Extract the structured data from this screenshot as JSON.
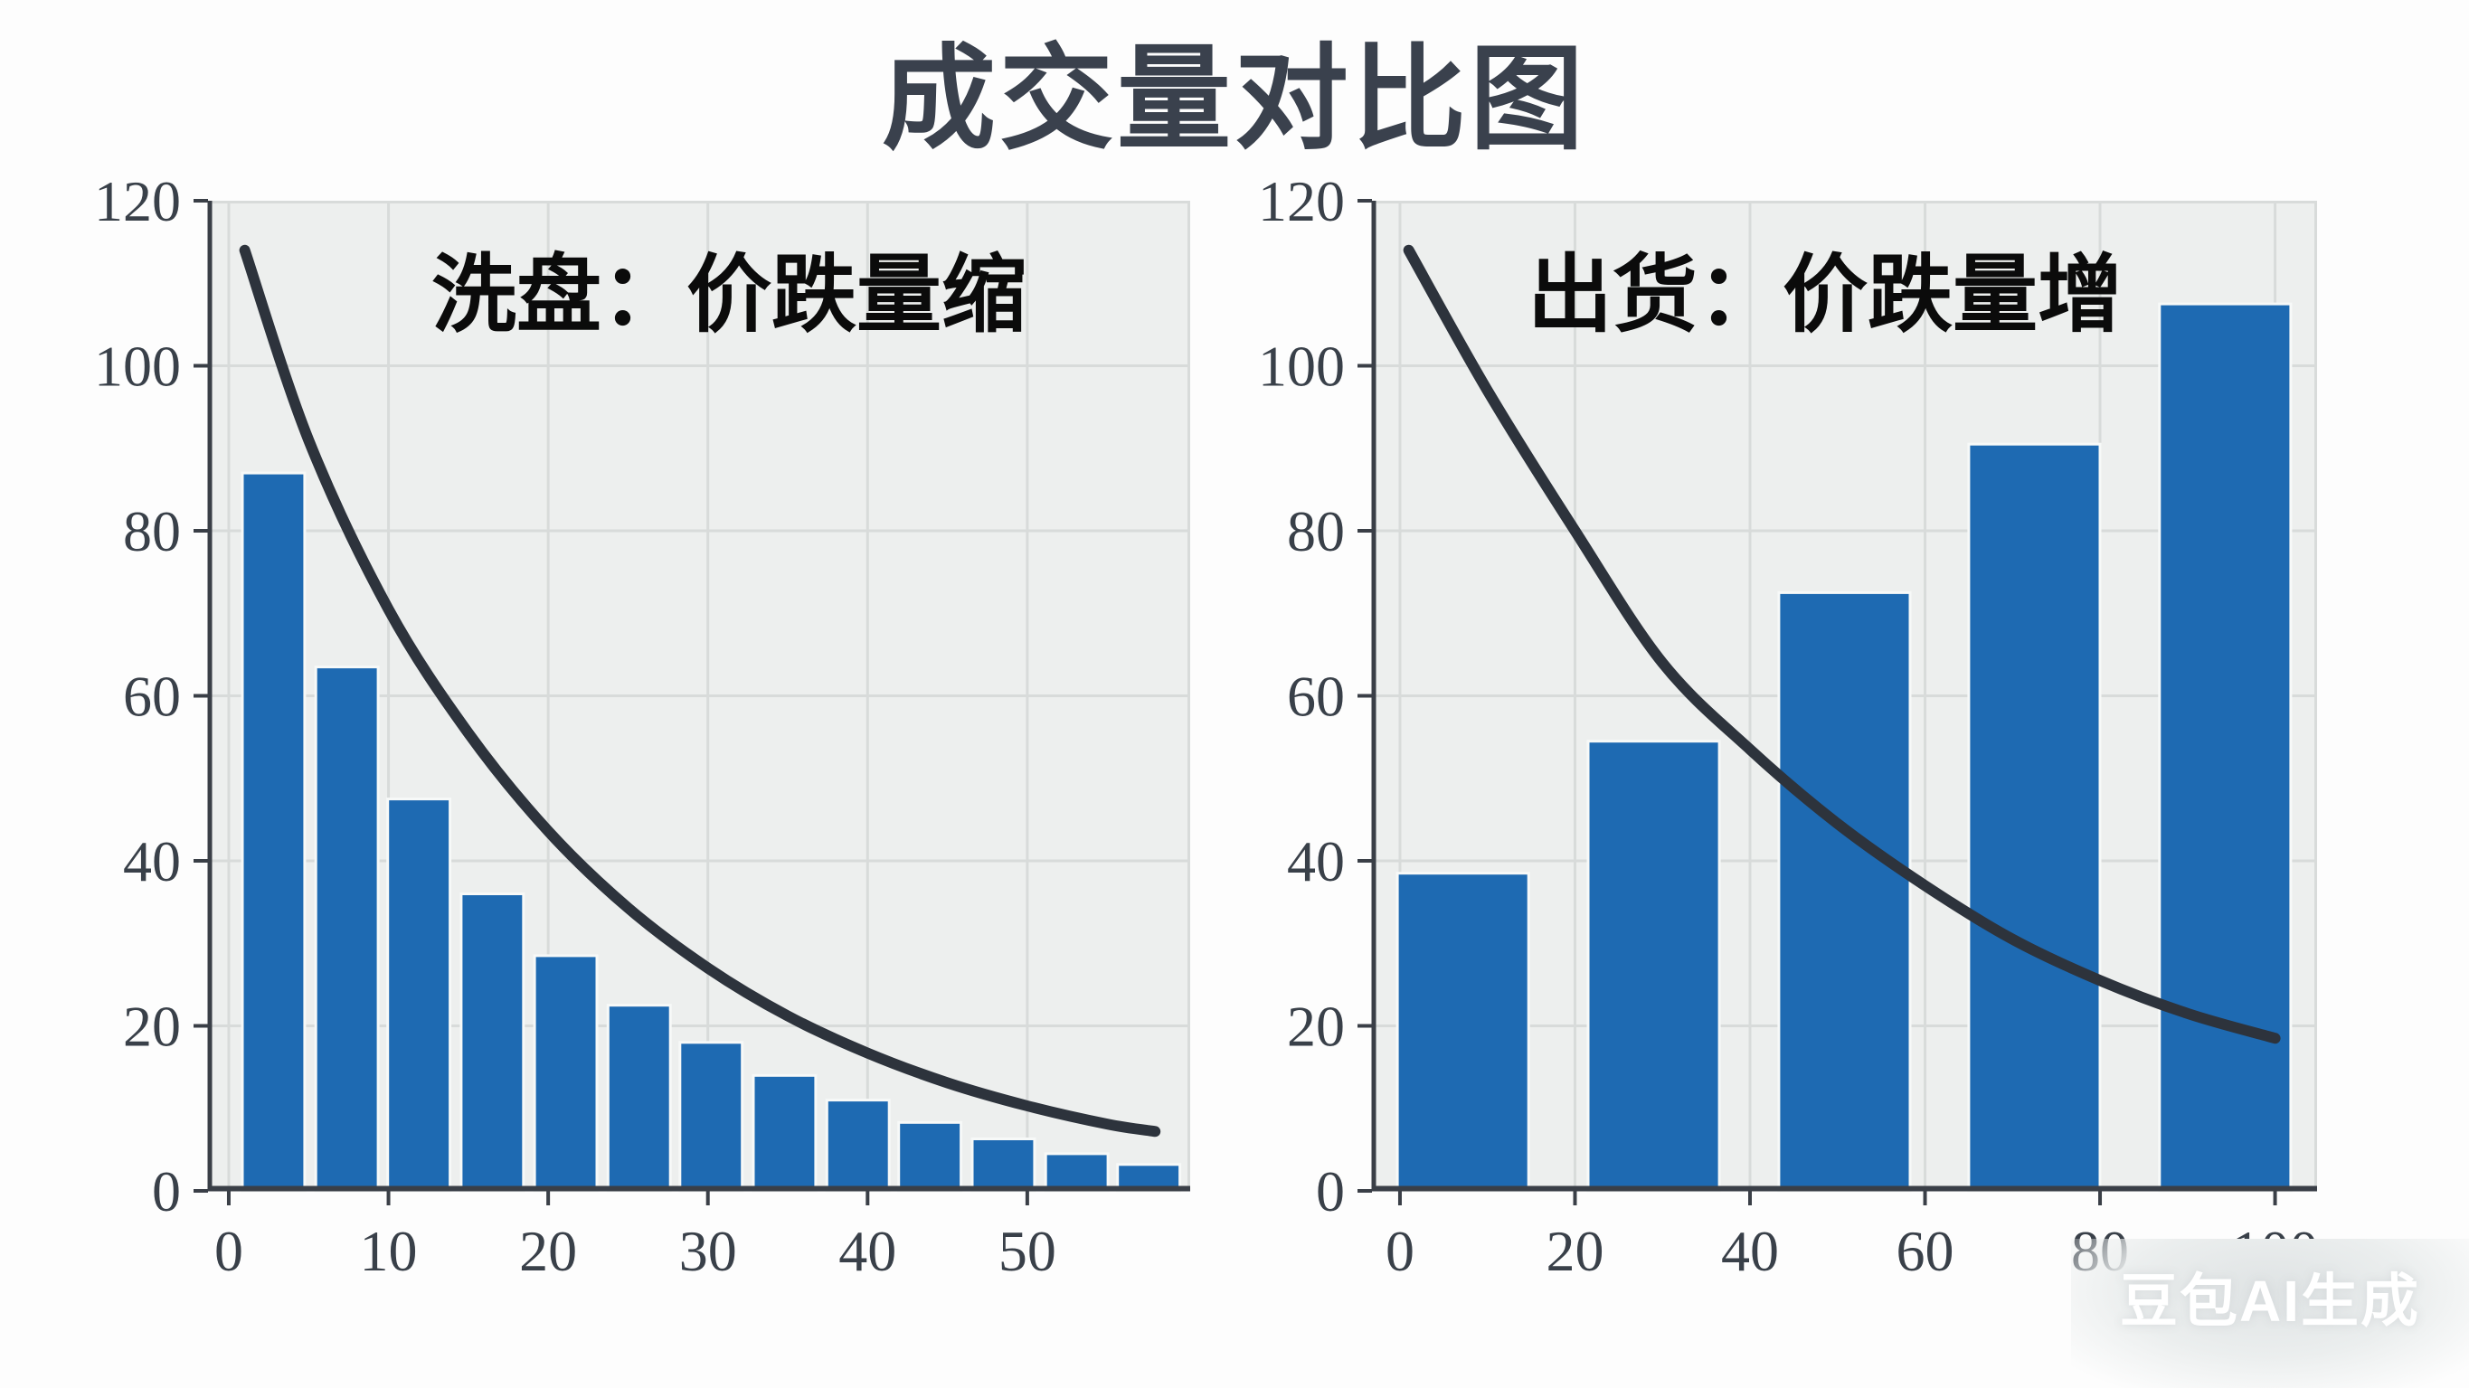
{
  "page": {
    "title": "成交量对比图",
    "watermark": "豆包AI生成",
    "background": "#fdfdfd"
  },
  "colors": {
    "bar": "#1e6ab2",
    "curve": "#2d333c",
    "plot_bg": "#edefee",
    "grid": "#d8dbda",
    "axis": "#3a3f47",
    "tick_label": "#394049",
    "title": "#3a414d",
    "annotation": "#0b0b0b",
    "bar_edge": "#f7f9f8"
  },
  "chart_data": [
    {
      "name": "washout-chart",
      "type": "bar+line",
      "annotation": "洗盘：价跌量缩",
      "x_range": [
        -1.3,
        60.2
      ],
      "y_range": [
        0,
        120
      ],
      "x_ticks": [
        0,
        10,
        20,
        30,
        40,
        50
      ],
      "y_ticks": [
        0,
        20,
        40,
        60,
        80,
        100,
        120
      ],
      "x_grid": [
        0,
        10,
        20,
        30,
        40,
        50
      ],
      "y_grid": [
        20,
        40,
        60,
        80,
        100
      ],
      "bars": {
        "width": 3.9,
        "x": [
          2.8,
          7.4,
          11.9,
          16.5,
          21.1,
          25.7,
          30.2,
          34.8,
          39.4,
          43.9,
          48.5,
          53.1,
          57.6
        ],
        "values": [
          87,
          63.5,
          47.5,
          36,
          28.5,
          22.5,
          18,
          14,
          11,
          8.3,
          6.3,
          4.5,
          3.2
        ]
      },
      "line": {
        "x": [
          1,
          5,
          10,
          15,
          20,
          25,
          30,
          35,
          40,
          45,
          50,
          55,
          58
        ],
        "y": [
          114,
          91,
          70.5,
          55.5,
          43.6,
          34.3,
          27,
          21.2,
          16.7,
          13.1,
          10.3,
          8.1,
          7.2
        ]
      }
    },
    {
      "name": "distribution-chart",
      "type": "bar+line",
      "annotation": "出货：价跌量增",
      "x_range": [
        -3.2,
        104.8
      ],
      "y_range": [
        0,
        120
      ],
      "x_ticks": [
        0,
        20,
        40,
        60,
        80,
        100
      ],
      "y_ticks": [
        0,
        20,
        40,
        60,
        80,
        100,
        120
      ],
      "x_grid": [
        0,
        20,
        40,
        60,
        80,
        100
      ],
      "y_grid": [
        20,
        40,
        60,
        80,
        100
      ],
      "bars": {
        "width": 15,
        "x": [
          7.2,
          29,
          50.8,
          72.5,
          94.3
        ],
        "values": [
          38.5,
          54.5,
          72.5,
          90.5,
          107.5
        ]
      },
      "line": {
        "x": [
          1,
          10,
          20,
          30,
          40,
          50,
          60,
          70,
          80,
          90,
          100
        ],
        "y": [
          114,
          97,
          80,
          64,
          53.5,
          44.5,
          37,
          30.5,
          25.5,
          21.5,
          18.5
        ]
      }
    }
  ]
}
